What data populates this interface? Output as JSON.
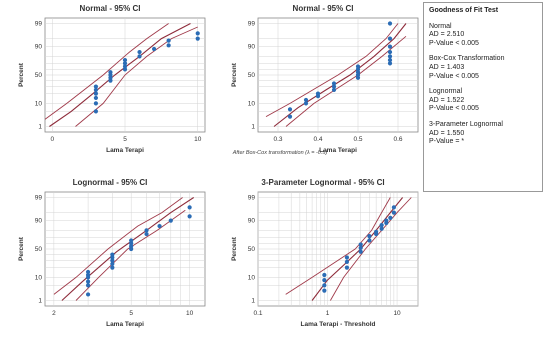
{
  "chart_data": [
    {
      "type": "scatter",
      "title": "Normal - 95% CI",
      "xlabel": "Lama Terapi",
      "ylabel": "Percent",
      "xscale": "linear",
      "xlim": [
        -0.5,
        10.5
      ],
      "xticks": [
        0,
        5,
        10
      ],
      "yticks": [
        1,
        10,
        50,
        90,
        99
      ],
      "points": [
        [
          3,
          5
        ],
        [
          3,
          10
        ],
        [
          3,
          15
        ],
        [
          3,
          20
        ],
        [
          3,
          25
        ],
        [
          3,
          30
        ],
        [
          4,
          40
        ],
        [
          4,
          45
        ],
        [
          4,
          50
        ],
        [
          4,
          55
        ],
        [
          5,
          60
        ],
        [
          5,
          65
        ],
        [
          5,
          70
        ],
        [
          5,
          75
        ],
        [
          6,
          80
        ],
        [
          6,
          85
        ],
        [
          7,
          88
        ],
        [
          8,
          91
        ],
        [
          8,
          94
        ],
        [
          10,
          95
        ],
        [
          10,
          97
        ]
      ],
      "fit_line": [
        [
          -0.2,
          1
        ],
        [
          1.3,
          5
        ],
        [
          2.8,
          20
        ],
        [
          4.3,
          50
        ],
        [
          6.0,
          80
        ],
        [
          7.5,
          95
        ],
        [
          9.5,
          99
        ]
      ],
      "ci_lower": [
        [
          1.6,
          1
        ],
        [
          3.5,
          10
        ],
        [
          5.0,
          50
        ],
        [
          6.5,
          80
        ],
        [
          8.2,
          95
        ],
        [
          10.0,
          98.5
        ]
      ],
      "ci_upper": [
        [
          -0.6,
          2
        ],
        [
          1.0,
          10
        ],
        [
          3.5,
          50
        ],
        [
          5.3,
          85
        ],
        [
          6.5,
          95
        ],
        [
          8.0,
          99
        ]
      ]
    },
    {
      "type": "scatter",
      "title": "Normal - 95% CI",
      "xlabel": "Lama Terapi",
      "ylabel": "Percent",
      "xscale": "linear",
      "xlim": [
        0.25,
        0.65
      ],
      "xticks": [
        0.3,
        0.4,
        0.5,
        0.6
      ],
      "yticks": [
        1,
        10,
        50,
        90,
        99
      ],
      "points": [
        [
          0.33,
          3
        ],
        [
          0.33,
          6
        ],
        [
          0.37,
          10
        ],
        [
          0.37,
          13
        ],
        [
          0.4,
          17
        ],
        [
          0.4,
          20
        ],
        [
          0.44,
          25
        ],
        [
          0.44,
          30
        ],
        [
          0.44,
          35
        ],
        [
          0.5,
          45
        ],
        [
          0.5,
          50
        ],
        [
          0.5,
          55
        ],
        [
          0.5,
          60
        ],
        [
          0.5,
          65
        ],
        [
          0.58,
          70
        ],
        [
          0.58,
          75
        ],
        [
          0.58,
          80
        ],
        [
          0.58,
          85
        ],
        [
          0.58,
          90
        ],
        [
          0.58,
          95
        ],
        [
          0.58,
          99
        ]
      ],
      "fit_line": [
        [
          0.29,
          1
        ],
        [
          0.35,
          7
        ],
        [
          0.42,
          25
        ],
        [
          0.48,
          50
        ],
        [
          0.54,
          80
        ],
        [
          0.59,
          95
        ],
        [
          0.62,
          99
        ]
      ],
      "ci_lower": [
        [
          0.32,
          1
        ],
        [
          0.39,
          10
        ],
        [
          0.5,
          50
        ],
        [
          0.56,
          80
        ],
        [
          0.62,
          96
        ]
      ],
      "ci_upper": [
        [
          0.27,
          3
        ],
        [
          0.33,
          10
        ],
        [
          0.45,
          50
        ],
        [
          0.52,
          80
        ],
        [
          0.57,
          95
        ],
        [
          0.6,
          99
        ]
      ]
    },
    {
      "type": "scatter",
      "title": "Lognormal - 95% CI",
      "xlabel": "Lama Terapi",
      "ylabel": "Percent",
      "xscale": "log",
      "xlim": [
        1.8,
        12
      ],
      "xticks": [
        2,
        5,
        10
      ],
      "yticks": [
        1,
        10,
        50,
        90,
        99
      ],
      "points": [
        [
          3,
          2
        ],
        [
          3,
          5
        ],
        [
          3,
          7
        ],
        [
          3,
          10
        ],
        [
          3,
          12
        ],
        [
          3,
          15
        ],
        [
          4,
          20
        ],
        [
          4,
          25
        ],
        [
          4,
          30
        ],
        [
          4,
          35
        ],
        [
          4,
          40
        ],
        [
          5,
          50
        ],
        [
          5,
          55
        ],
        [
          5,
          60
        ],
        [
          5,
          65
        ],
        [
          6,
          75
        ],
        [
          6,
          80
        ],
        [
          7,
          85
        ],
        [
          8,
          90
        ],
        [
          10,
          93
        ],
        [
          10,
          97
        ]
      ],
      "fit_line": [
        [
          2.2,
          1
        ],
        [
          2.8,
          7
        ],
        [
          4.2,
          45
        ],
        [
          6.0,
          80
        ],
        [
          8.0,
          95
        ],
        [
          10.5,
          99
        ]
      ],
      "ci_lower": [
        [
          2.6,
          1
        ],
        [
          3.4,
          10
        ],
        [
          4.8,
          50
        ],
        [
          6.8,
          80
        ],
        [
          9.5,
          96
        ]
      ],
      "ci_upper": [
        [
          2.0,
          2
        ],
        [
          2.6,
          10
        ],
        [
          3.8,
          50
        ],
        [
          5.4,
          85
        ],
        [
          7.2,
          95
        ],
        [
          9.2,
          99
        ]
      ]
    },
    {
      "type": "scatter",
      "title": "3-Parameter Lognormal - 95% CI",
      "xlabel": "Lama Terapi - Threshold",
      "ylabel": "Percent",
      "xscale": "log",
      "xlim": [
        0.1,
        20
      ],
      "xticks": [
        0.1,
        1,
        10
      ],
      "yticks": [
        1,
        10,
        50,
        90,
        99
      ],
      "points": [
        [
          0.9,
          3
        ],
        [
          0.9,
          5
        ],
        [
          0.9,
          8
        ],
        [
          0.9,
          12
        ],
        [
          1.9,
          20
        ],
        [
          1.9,
          28
        ],
        [
          1.9,
          35
        ],
        [
          3,
          45
        ],
        [
          3,
          52
        ],
        [
          3,
          58
        ],
        [
          4,
          65
        ],
        [
          4,
          72
        ],
        [
          5,
          75
        ],
        [
          5,
          78
        ],
        [
          6,
          82
        ],
        [
          6,
          86
        ],
        [
          7,
          88
        ],
        [
          7,
          90
        ],
        [
          8,
          92
        ],
        [
          9,
          95
        ],
        [
          9,
          97
        ]
      ],
      "fit_line": [
        [
          0.6,
          1
        ],
        [
          1.0,
          8
        ],
        [
          2.0,
          30
        ],
        [
          3.0,
          50
        ],
        [
          5.0,
          80
        ],
        [
          8.0,
          95
        ],
        [
          12.0,
          99
        ]
      ],
      "ci_lower": [
        [
          1.1,
          1
        ],
        [
          1.7,
          10
        ],
        [
          3.5,
          50
        ],
        [
          6.0,
          80
        ],
        [
          10.0,
          95
        ],
        [
          16.0,
          99
        ]
      ],
      "ci_upper": [
        [
          0.25,
          2
        ],
        [
          0.6,
          10
        ],
        [
          2.5,
          50
        ],
        [
          4.3,
          80
        ],
        [
          6.0,
          95
        ],
        [
          8.0,
          99
        ]
      ]
    }
  ],
  "note": "After Box-Cox transformation (λ = -0.5)",
  "goodness_of_fit": {
    "title": "Goodness of Fit Test",
    "blocks": [
      {
        "name": "Normal",
        "ad": "AD = 2.510",
        "p": "P-Value < 0.005"
      },
      {
        "name": "Box-Cox Transformation",
        "ad": "AD = 1.403",
        "p": "P-Value < 0.005"
      },
      {
        "name": "Lognormal",
        "ad": "AD = 1.522",
        "p": "P-Value < 0.005"
      },
      {
        "name": "3-Parameter Lognormal",
        "ad": "AD = 1.550",
        "p": "P-Value = *"
      }
    ]
  },
  "colors": {
    "points": "#2b6cb5",
    "fit_line": "#8e2b3a",
    "ci_band": "#a03a4a",
    "grid": "#d4d4d4",
    "frame": "#888888"
  }
}
